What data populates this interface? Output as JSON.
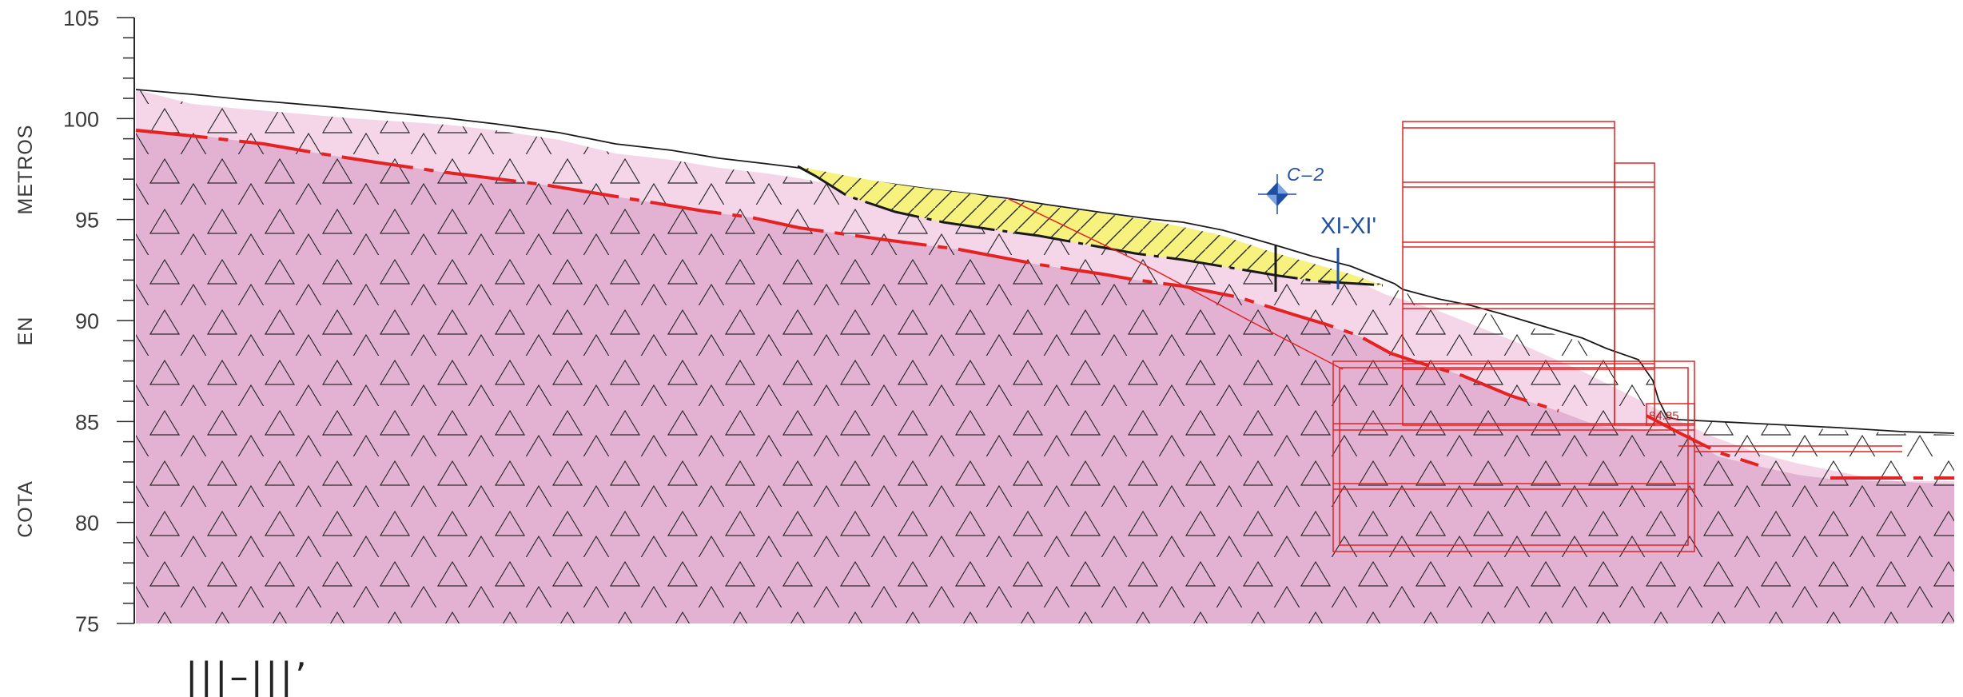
{
  "axis": {
    "unit_words": [
      "COTA",
      "EN",
      "METROS"
    ],
    "ticks": [
      75,
      80,
      85,
      90,
      95,
      100,
      105
    ],
    "range": [
      75,
      105
    ]
  },
  "section_mark": "|||–|||’",
  "cross_section_label": "XI-XI'",
  "borehole": {
    "label": "C–2"
  },
  "building": {
    "level_label": "84.85"
  },
  "colors": {
    "deep_rock": "#e3b2d2",
    "weathered_rock": "#f5d6e8",
    "fill_deposit": "#f6f27d",
    "contact_line": "#e52222",
    "structure": "#e52222",
    "borehole": "#1f4fa3"
  }
}
